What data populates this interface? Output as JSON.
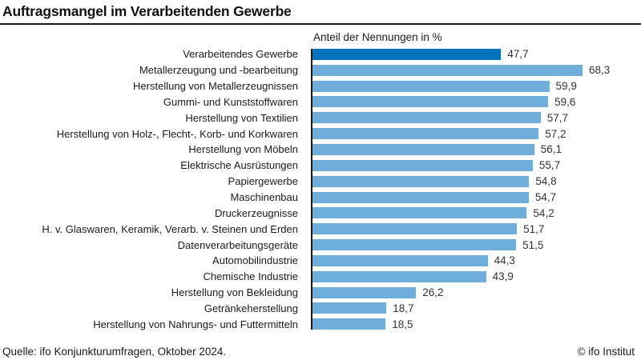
{
  "title": "Auftragsmangel im Verarbeitenden Gewerbe",
  "footer": {
    "source": "Quelle: ifo Konjunkturumfragen, Oktober 2024.",
    "copyright": "© ifo Institut"
  },
  "colors": {
    "highlight_bar": "#0572BC",
    "bar": "#6FAEDB",
    "axis_line": "#1a1a1a"
  },
  "chart_data": {
    "type": "bar",
    "orientation": "horizontal",
    "title": "Auftragsmangel im Verarbeitenden Gewerbe",
    "xlabel": "Anteil der Nennungen in %",
    "categories": [
      "Verarbeitendes Gewerbe",
      "Metallerzeugung und -bearbeitung",
      "Herstellung von Metallerzeugnissen",
      "Gummi- und Kunststoffwaren",
      "Herstellung von Textilien",
      "Herstellung von Holz-, Flecht-, Korb- und Korkwaren",
      "Herstellung von Möbeln",
      "Elektrische Ausrüstungen",
      "Papiergewerbe",
      "Maschinenbau",
      "Druckerzeugnisse",
      "H. v. Glaswaren, Keramik, Verarb. v. Steinen und Erden",
      "Datenverarbeitungsgeräte",
      "Automobilindustrie",
      "Chemische Industrie",
      "Herstellung von Bekleidung",
      "Getränkeherstellung",
      "Herstellung von Nahrungs- und Futtermitteln"
    ],
    "values": [
      47.7,
      68.3,
      59.9,
      59.6,
      57.7,
      57.2,
      56.1,
      55.7,
      54.8,
      54.7,
      54.2,
      51.7,
      51.5,
      44.3,
      43.9,
      26.2,
      18.7,
      18.5
    ],
    "value_labels": [
      "47,7",
      "68,3",
      "59,9",
      "59,6",
      "57,7",
      "57,2",
      "56,1",
      "55,7",
      "54,8",
      "54,7",
      "54,2",
      "51,7",
      "51,5",
      "44,3",
      "43,9",
      "26,2",
      "18,7",
      "18,5"
    ],
    "highlight_index": 0,
    "xlim": [
      0,
      70
    ],
    "grid": false,
    "legend": false
  }
}
